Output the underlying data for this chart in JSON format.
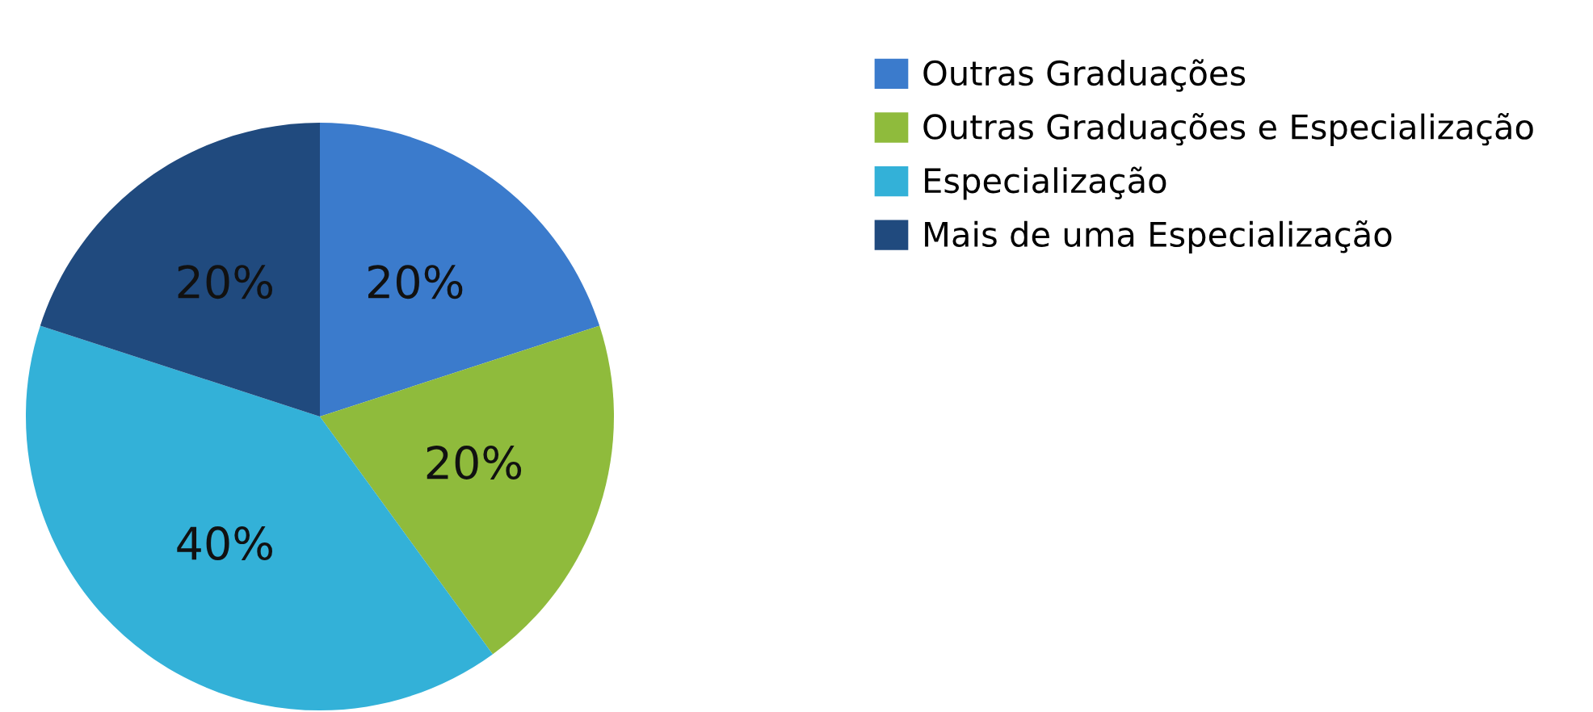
{
  "chart_data": {
    "type": "pie",
    "categories": [
      "Outras Graduações",
      "Outras Graduações e Especialização",
      "Especialização",
      "Mais de uma Especialização"
    ],
    "values": [
      20,
      20,
      40,
      20
    ],
    "value_labels": [
      "20%",
      "20%",
      "40%",
      "20%"
    ],
    "colors": [
      "#3b7bcc",
      "#8fbb3c",
      "#33b1d8",
      "#204a7e"
    ],
    "legend": "right"
  }
}
